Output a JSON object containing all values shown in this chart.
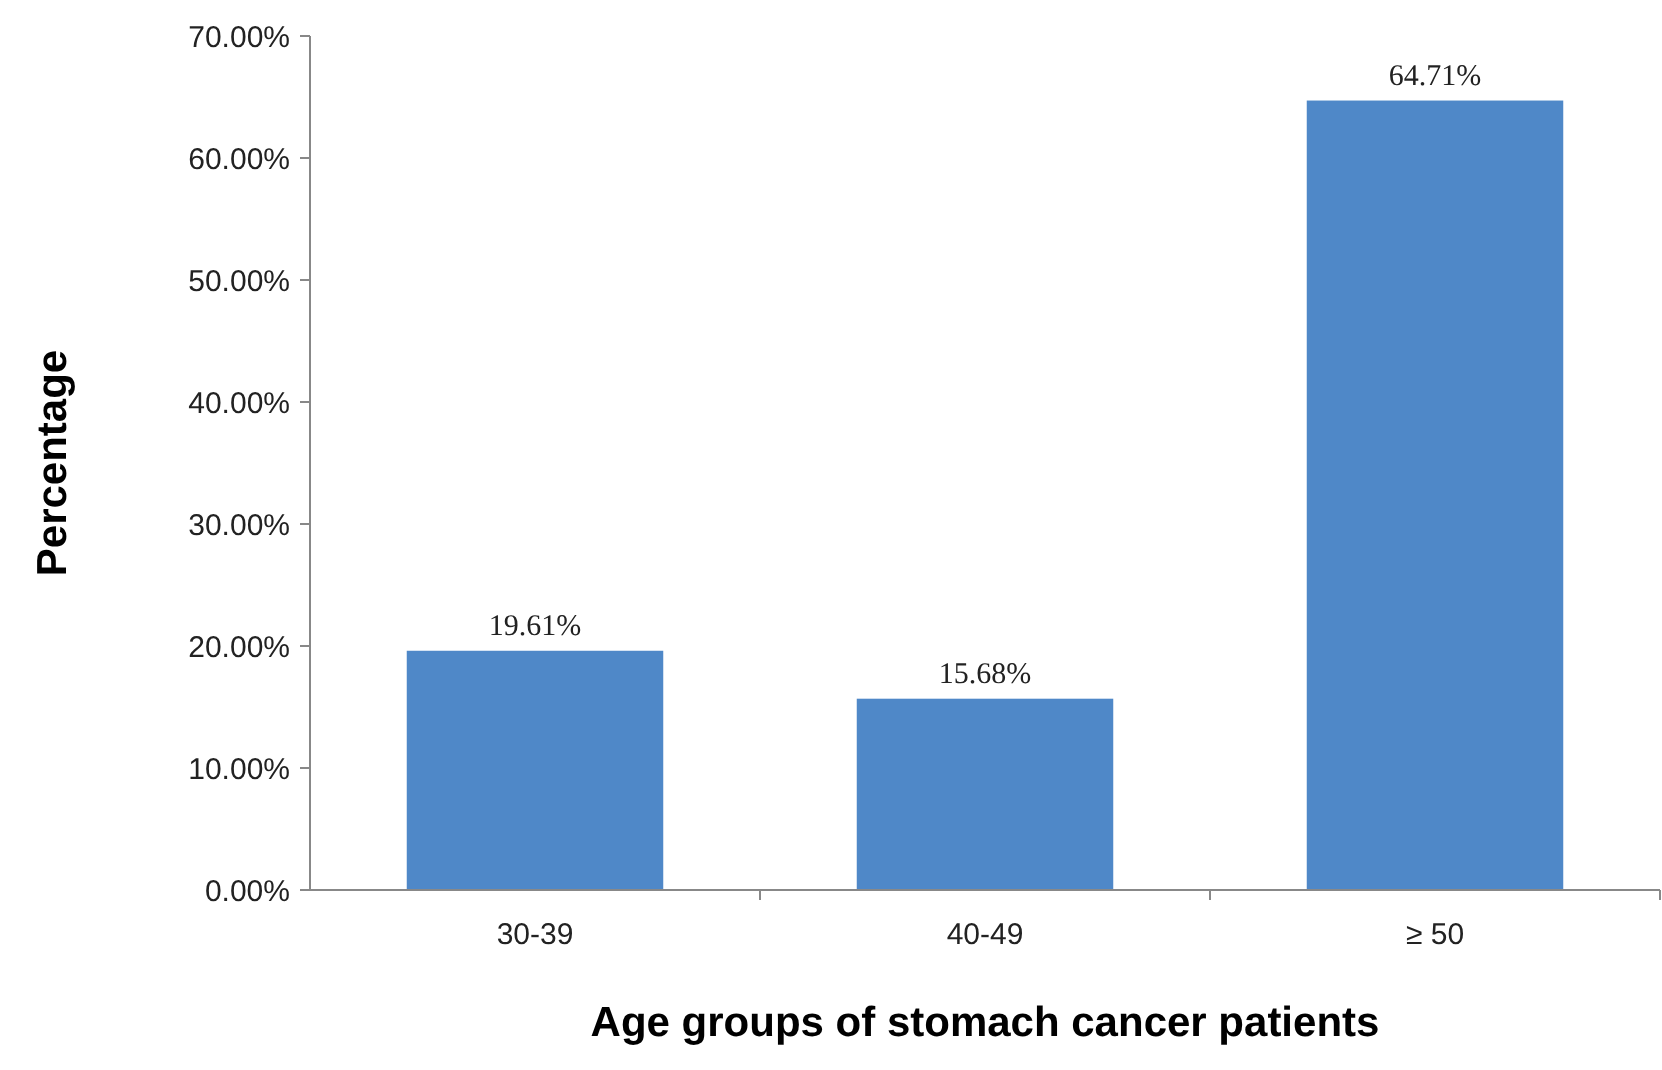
{
  "chart_data": {
    "type": "bar",
    "xlabel": "Age groups of stomach cancer patients",
    "ylabel": "Percentage",
    "categories": [
      "30-39",
      "40-49",
      "≥ 50"
    ],
    "values": [
      19.61,
      15.68,
      64.71
    ],
    "color": "#4f88c8",
    "value_labels": [
      "19.61%",
      "15.68%",
      "64.71%"
    ],
    "ylim": [
      0,
      70
    ],
    "yticks": [
      {
        "value": 0,
        "label": "0.00%"
      },
      {
        "value": 10,
        "label": "10.00%"
      },
      {
        "value": 20,
        "label": "20.00%"
      },
      {
        "value": 30,
        "label": "30.00%"
      },
      {
        "value": 40,
        "label": "40.00%"
      },
      {
        "value": 50,
        "label": "50.00%"
      },
      {
        "value": 60,
        "label": "60.00%"
      },
      {
        "value": 70,
        "label": "70.00%"
      }
    ],
    "grid": false
  }
}
